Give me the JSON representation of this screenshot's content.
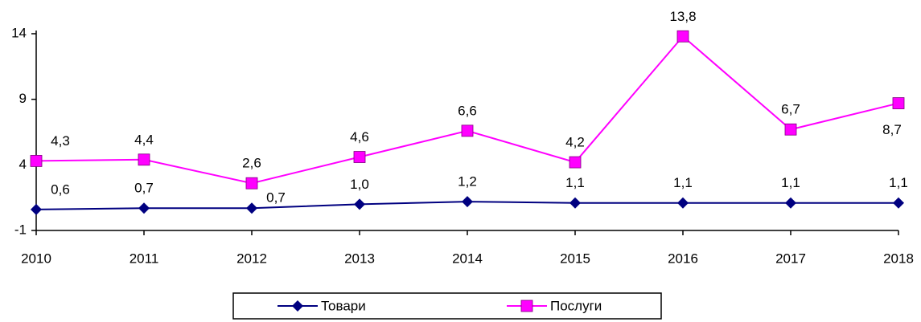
{
  "chart_data": {
    "type": "line",
    "categories": [
      "2010",
      "2011",
      "2012",
      "2013",
      "2014",
      "2015",
      "2016",
      "2017",
      "2018"
    ],
    "series": [
      {
        "name": "Товари",
        "color": "#000080",
        "marker": "diamond",
        "values": [
          0.6,
          0.7,
          0.7,
          1.0,
          1.2,
          1.1,
          1.1,
          1.1,
          1.1
        ],
        "value_labels": [
          "0,6",
          "0,7",
          "0,7",
          "1,0",
          "1,2",
          "1,1",
          "1,1",
          "1,1",
          "1,1"
        ]
      },
      {
        "name": "Послуги",
        "color": "#ff00ff",
        "marker": "square",
        "values": [
          4.3,
          4.4,
          2.6,
          4.6,
          6.6,
          4.2,
          13.8,
          6.7,
          8.7
        ],
        "value_labels": [
          "4,3",
          "4,4",
          "2,6",
          "4,6",
          "6,6",
          "4,2",
          "13,8",
          "6,7",
          "8,7"
        ]
      }
    ],
    "ylim": [
      -1,
      14
    ],
    "yticks": [
      -1,
      4,
      9,
      14
    ],
    "grid": false,
    "legend": "bottom"
  }
}
